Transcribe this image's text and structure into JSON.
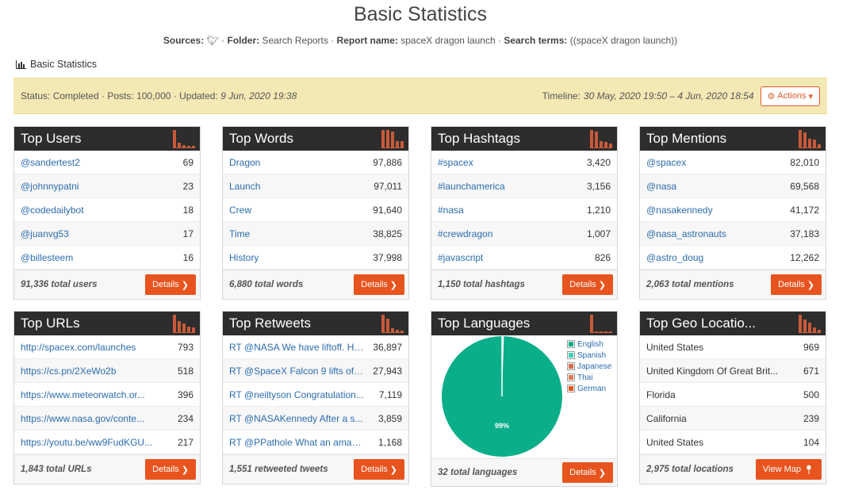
{
  "page": {
    "title": "Basic Statistics",
    "sources_label": "Sources:",
    "folder_label": "Folder:",
    "folder_value": "Search Reports",
    "report_label": "Report name:",
    "report_value": "spaceX dragon launch",
    "terms_label": "Search terms:",
    "terms_value": "((spaceX dragon launch))",
    "breadcrumb": "Basic Statistics"
  },
  "status": {
    "text": "Status: Completed · Posts: 100,000 · Updated:",
    "updated": "9 Jun, 2020 19:38",
    "timeline_label": "Timeline:",
    "timeline_value": "30 May, 2020 19:50 – 4 Jun, 2020 18:54",
    "actions_label": "Actions"
  },
  "panels": {
    "top_users": {
      "title": "Top Users",
      "rows": [
        {
          "label": "@sandertest2",
          "value": "69"
        },
        {
          "label": "@johnnypatni",
          "value": "23"
        },
        {
          "label": "@codedailybot",
          "value": "18"
        },
        {
          "label": "@juanvg53",
          "value": "17"
        },
        {
          "label": "@billesteem",
          "value": "16"
        }
      ],
      "total": "91,336 total users",
      "button": "Details"
    },
    "top_words": {
      "title": "Top Words",
      "rows": [
        {
          "label": "Dragon",
          "value": "97,886"
        },
        {
          "label": "Launch",
          "value": "97,011"
        },
        {
          "label": "Crew",
          "value": "91,640"
        },
        {
          "label": "Time",
          "value": "38,825"
        },
        {
          "label": "History",
          "value": "37,998"
        }
      ],
      "total": "6,880 total words",
      "button": "Details"
    },
    "top_hashtags": {
      "title": "Top Hashtags",
      "rows": [
        {
          "label": "#spacex",
          "value": "3,420"
        },
        {
          "label": "#launchamerica",
          "value": "3,156"
        },
        {
          "label": "#nasa",
          "value": "1,210"
        },
        {
          "label": "#crewdragon",
          "value": "1,007"
        },
        {
          "label": "#javascript",
          "value": "826"
        }
      ],
      "total": "1,150 total hashtags",
      "button": "Details"
    },
    "top_mentions": {
      "title": "Top Mentions",
      "rows": [
        {
          "label": "@spacex",
          "value": "82,010"
        },
        {
          "label": "@nasa",
          "value": "69,568"
        },
        {
          "label": "@nasakennedy",
          "value": "41,172"
        },
        {
          "label": "@nasa_astronauts",
          "value": "37,183"
        },
        {
          "label": "@astro_doug",
          "value": "12,262"
        }
      ],
      "total": "2,063 total mentions",
      "button": "Details"
    },
    "top_urls": {
      "title": "Top URLs",
      "rows": [
        {
          "label": "http://spacex.com/launches",
          "value": "793"
        },
        {
          "label": "https://cs.pn/2XeWo2b",
          "value": "518"
        },
        {
          "label": "https://www.meteorwatch.or...",
          "value": "396"
        },
        {
          "label": "https://www.nasa.gov/conte...",
          "value": "234"
        },
        {
          "label": "https://youtu.be/ww9FudKGU...",
          "value": "217"
        }
      ],
      "total": "1,843 total URLs",
      "button": "Details"
    },
    "top_retweets": {
      "title": "Top Retweets",
      "rows": [
        {
          "label": "RT @NASA We have liftoff. Hi...",
          "value": "36,897"
        },
        {
          "label": "RT @SpaceX Falcon 9 lifts off...",
          "value": "27,943"
        },
        {
          "label": "RT @neiltyson Congratulation...",
          "value": "7,119"
        },
        {
          "label": "RT @NASAKennedy After a s...",
          "value": "3,859"
        },
        {
          "label": "RT @PPathole What an amaz...",
          "value": "1,168"
        }
      ],
      "total": "1,551 retweeted tweets",
      "button": "Details"
    },
    "top_languages": {
      "title": "Top Languages",
      "pie_label": "99%",
      "legend": [
        {
          "label": "English",
          "color": "#0aaf8a"
        },
        {
          "label": "Spanish",
          "color": "#3fd1b7"
        },
        {
          "label": "Japanese",
          "color": "#d9694a"
        },
        {
          "label": "Thai",
          "color": "#e07a52"
        },
        {
          "label": "German",
          "color": "#e8541e"
        }
      ],
      "total": "32 total languages",
      "button": "Details"
    },
    "top_geo": {
      "title": "Top Geo Locatio...",
      "rows": [
        {
          "label": "United States",
          "value": "969"
        },
        {
          "label": "United Kingdom Of Great Brit...",
          "value": "671"
        },
        {
          "label": "Florida",
          "value": "500"
        },
        {
          "label": "California",
          "value": "239"
        },
        {
          "label": "United States",
          "value": "104"
        }
      ],
      "total": "2,975 total locations",
      "button": "View Map"
    }
  },
  "colors": {
    "accent": "#e8541e",
    "header": "#2d2d2d",
    "status_bg": "#f3e9b4",
    "pie": "#0aaf8a"
  }
}
